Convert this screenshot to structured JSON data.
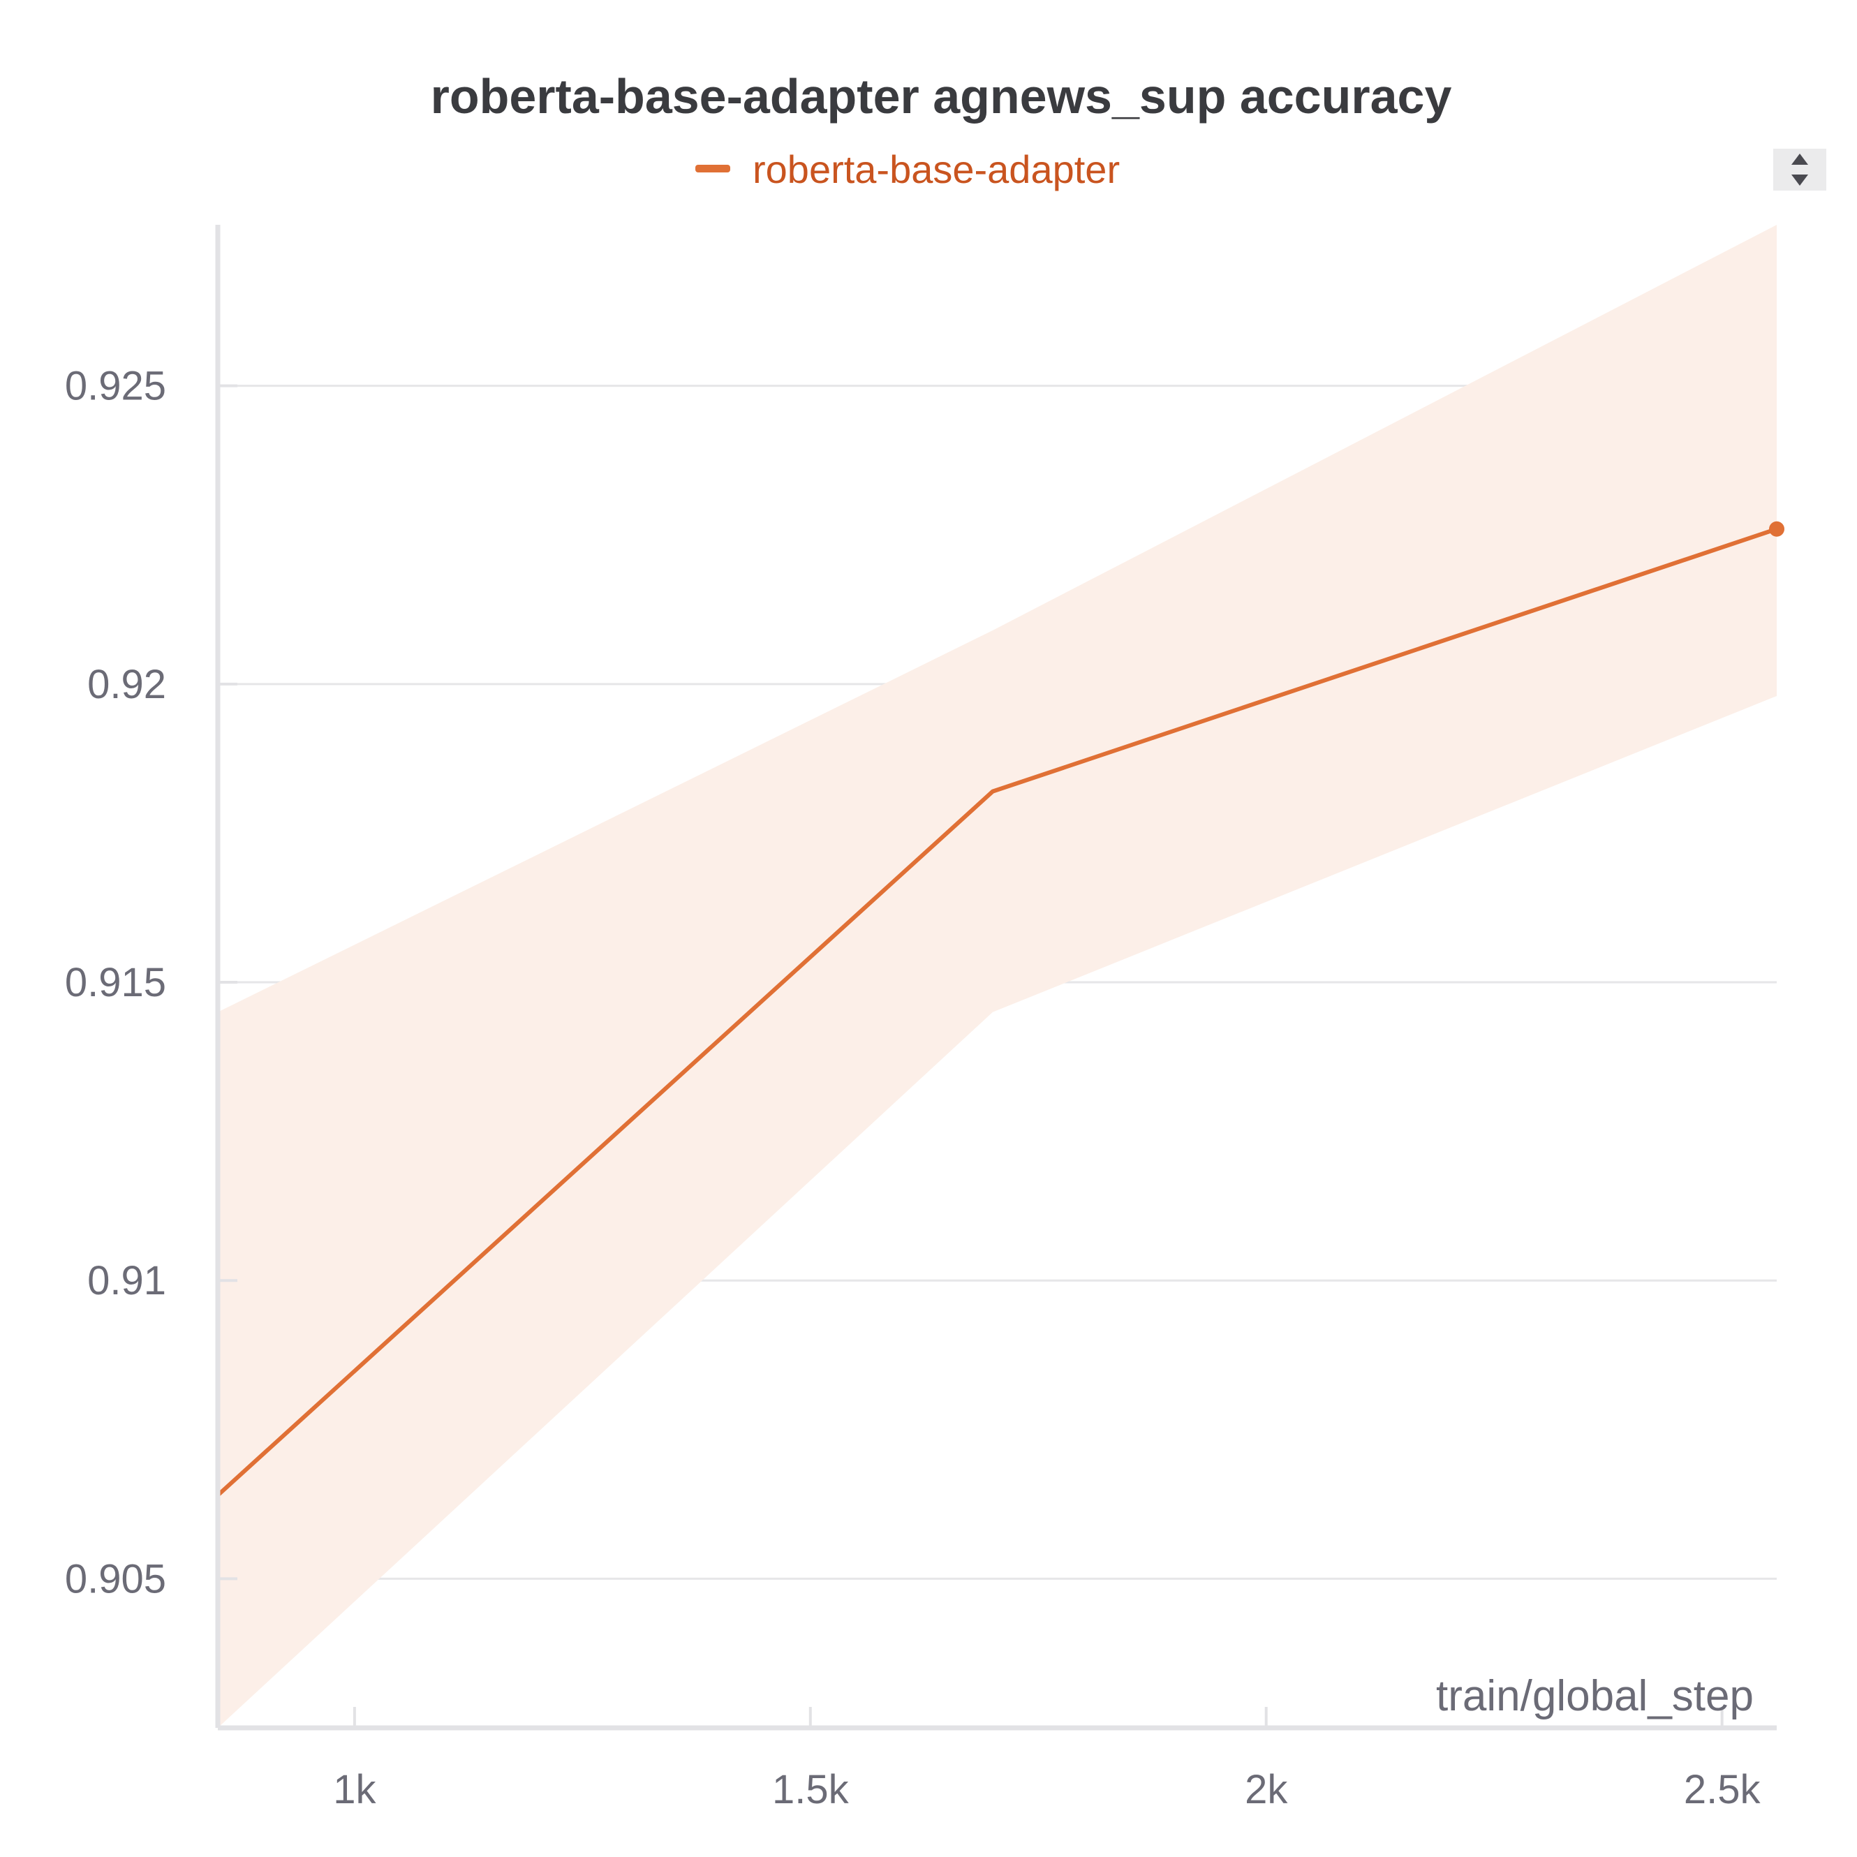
{
  "chart_data": {
    "type": "line",
    "title": "roberta-base-adapter agnews_sup accuracy",
    "xlabel": "train/global_step",
    "ylabel": "",
    "xlim": [
      850,
      2560
    ],
    "ylim": [
      0.9025,
      0.9277
    ],
    "x_ticks": [
      1000,
      1500,
      2000,
      2500
    ],
    "x_tick_labels": [
      "1k",
      "1.5k",
      "2k",
      "2.5k"
    ],
    "y_ticks": [
      0.905,
      0.91,
      0.915,
      0.92,
      0.925
    ],
    "y_tick_labels": [
      "0.905",
      "0.91",
      "0.915",
      "0.92",
      "0.925"
    ],
    "grid": "horizontal",
    "legend": "top-center",
    "series": [
      {
        "name": "roberta-base-adapter",
        "color": "#e07035",
        "band_color": "#fcefe8",
        "x": [
          850,
          1700,
          2560
        ],
        "y": [
          0.9064,
          0.9182,
          0.9226
        ],
        "band_upper": [
          0.9145,
          0.9209,
          0.9277
        ],
        "band_lower": [
          0.9025,
          0.9145,
          0.9198
        ]
      }
    ]
  },
  "legend_label": "roberta-base-adapter",
  "legend_text_color": "#c9541f",
  "controls": {
    "icon": "sort-arrows-icon"
  }
}
